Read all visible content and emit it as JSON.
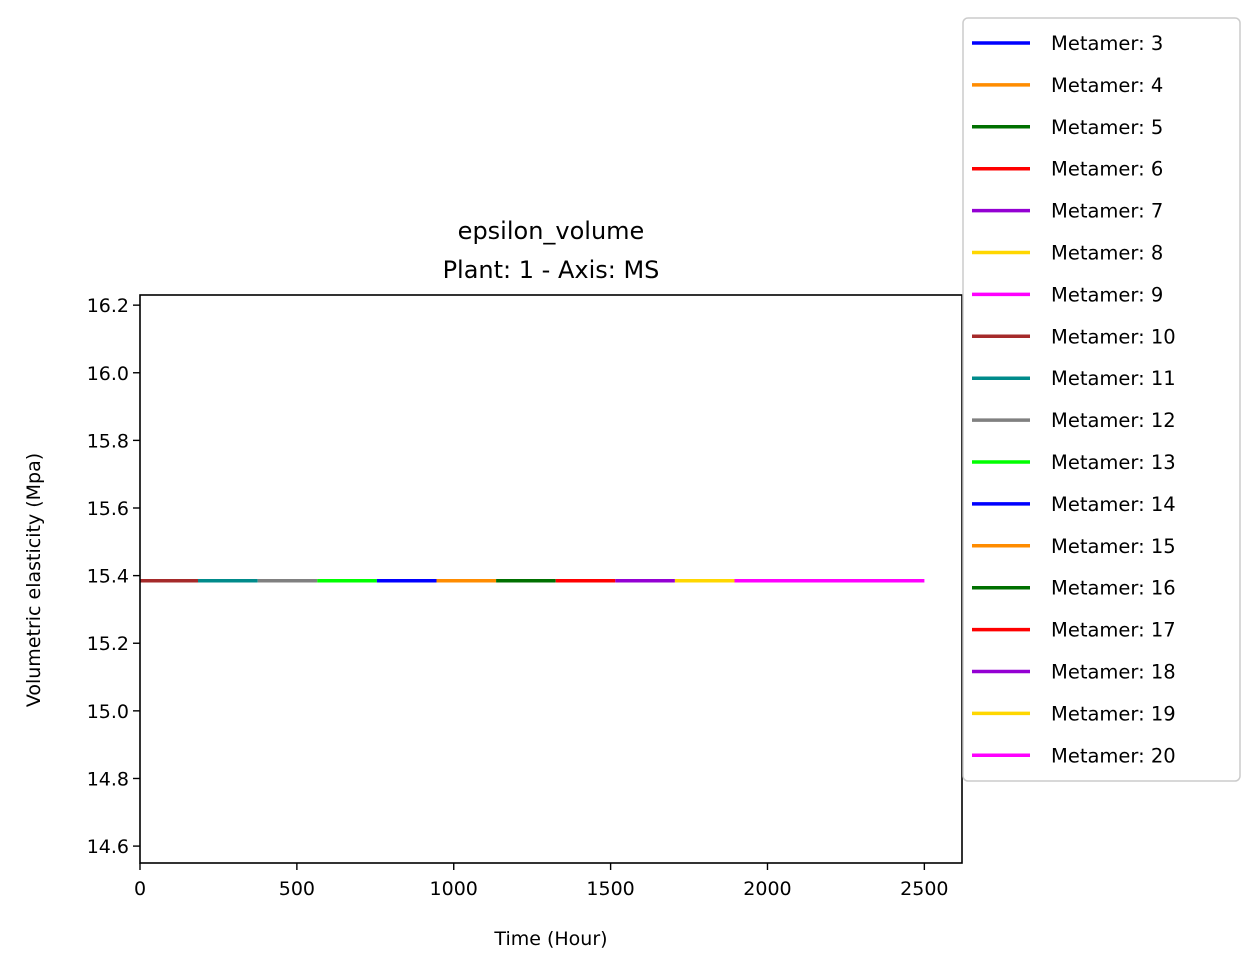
{
  "chart_data": {
    "type": "line",
    "title": "epsilon_volume",
    "subtitle": "Plant: 1 - Axis: MS",
    "xlabel": "Time (Hour)",
    "ylabel": "Volumetric elasticity (Mpa)",
    "xlim": [
      0,
      2620
    ],
    "ylim": [
      14.55,
      16.23
    ],
    "xticks": [
      0,
      500,
      1000,
      1500,
      2000,
      2500
    ],
    "xtick_labels": [
      "0",
      "500",
      "1000",
      "1500",
      "2000",
      "2500"
    ],
    "yticks": [
      14.6,
      14.8,
      15.0,
      15.2,
      15.4,
      15.6,
      15.8,
      16.0,
      16.2
    ],
    "ytick_labels": [
      "14.6",
      "14.8",
      "15.0",
      "15.2",
      "15.4",
      "15.6",
      "15.8",
      "16.0",
      "16.2"
    ],
    "grid": false,
    "legend_placement": "outside-right",
    "series": [
      {
        "name": "Metamer: 3",
        "color": "#0000ff",
        "x": [],
        "y": []
      },
      {
        "name": "Metamer: 4",
        "color": "#ff8c00",
        "x": [],
        "y": []
      },
      {
        "name": "Metamer: 5",
        "color": "#007000",
        "x": [],
        "y": []
      },
      {
        "name": "Metamer: 6",
        "color": "#ff0000",
        "x": [],
        "y": []
      },
      {
        "name": "Metamer: 7",
        "color": "#9400d3",
        "x": [],
        "y": []
      },
      {
        "name": "Metamer: 8",
        "color": "#ffd700",
        "x": [],
        "y": []
      },
      {
        "name": "Metamer: 9",
        "color": "#ff00ff",
        "x": [],
        "y": []
      },
      {
        "name": "Metamer: 10",
        "color": "#a52a2a",
        "x": [
          0,
          185
        ],
        "y": [
          15.385,
          15.385
        ]
      },
      {
        "name": "Metamer: 11",
        "color": "#008b8b",
        "x": [
          185,
          375
        ],
        "y": [
          15.385,
          15.385
        ]
      },
      {
        "name": "Metamer: 12",
        "color": "#808080",
        "x": [
          375,
          565
        ],
        "y": [
          15.385,
          15.385
        ]
      },
      {
        "name": "Metamer: 13",
        "color": "#00ff00",
        "x": [
          565,
          755
        ],
        "y": [
          15.385,
          15.385
        ]
      },
      {
        "name": "Metamer: 14",
        "color": "#0000ff",
        "x": [
          755,
          945
        ],
        "y": [
          15.385,
          15.385
        ]
      },
      {
        "name": "Metamer: 15",
        "color": "#ff8c00",
        "x": [
          945,
          1135
        ],
        "y": [
          15.385,
          15.385
        ]
      },
      {
        "name": "Metamer: 16",
        "color": "#007000",
        "x": [
          1135,
          1325
        ],
        "y": [
          15.385,
          15.385
        ]
      },
      {
        "name": "Metamer: 17",
        "color": "#ff0000",
        "x": [
          1325,
          1515
        ],
        "y": [
          15.385,
          15.385
        ]
      },
      {
        "name": "Metamer: 18",
        "color": "#9400d3",
        "x": [
          1515,
          1705
        ],
        "y": [
          15.385,
          15.385
        ]
      },
      {
        "name": "Metamer: 19",
        "color": "#ffd700",
        "x": [
          1705,
          1895
        ],
        "y": [
          15.385,
          15.385
        ]
      },
      {
        "name": "Metamer: 20",
        "color": "#ff00ff",
        "x": [
          1895,
          2500
        ],
        "y": [
          15.385,
          15.385
        ]
      }
    ]
  }
}
